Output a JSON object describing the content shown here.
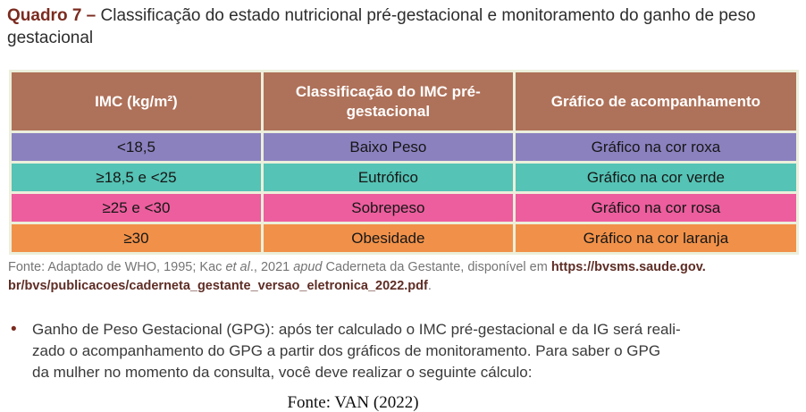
{
  "colors": {
    "title_accent": "#7b2b20",
    "header_bg": "#ae7159",
    "cell_border": "#ecefdb",
    "link_color": "#5e2d25",
    "body_text": "#3a3a3a",
    "note_text": "#757575"
  },
  "title": {
    "label": "Quadro 7 – ",
    "text": "Classificação do estado nutricional pré-gestacional e monitoramento do ganho de peso gestacional"
  },
  "table": {
    "header_color": "#ae7159",
    "headers": [
      "IMC (kg/m²)",
      "Classificação do IMC pré-gestacional",
      "Gráfico de acompanhamento"
    ],
    "rows": [
      {
        "imc": "<18,5",
        "classification": "Baixo Peso",
        "chart": "Gráfico na cor roxa",
        "color": "#8b81bf"
      },
      {
        "imc": "≥18,5 e <25",
        "classification": "Eutrófico",
        "chart": "Gráfico na cor verde",
        "color": "#55c3b5"
      },
      {
        "imc": "≥25 e <30",
        "classification": "Sobrepeso",
        "chart": "Gráfico na cor rosa",
        "color": "#ec5e9e"
      },
      {
        "imc": "≥30",
        "classification": "Obesidade",
        "chart": "Gráfico na cor laranja",
        "color": "#f19149"
      }
    ]
  },
  "source_note": {
    "prefix": "Fonte: Adaptado de WHO, 1995; Kac ",
    "italic1": "et al",
    "mid1": "., 2021 ",
    "italic2": "apud",
    "mid2": " Caderneta da Gestante, disponível em ",
    "link_line1": "https://bvsms.saude.gov.",
    "link_line2": "br/bvs/publicacoes/caderneta_gestante_versao_eletronica_2022.pdf",
    "suffix": "."
  },
  "bullet": {
    "marker": "•",
    "lines": [
      "Ganho de Peso Gestacional (GPG): após ter calculado o IMC pré-gestacional e da IG será reali-",
      "zado o acompanhamento do GPG a partir dos gráficos de monitoramento. Para saber o GPG",
      "da mulher no momento da consulta, você deve realizar o seguinte cálculo:"
    ]
  },
  "footer_source": "Fonte: VAN (2022)"
}
